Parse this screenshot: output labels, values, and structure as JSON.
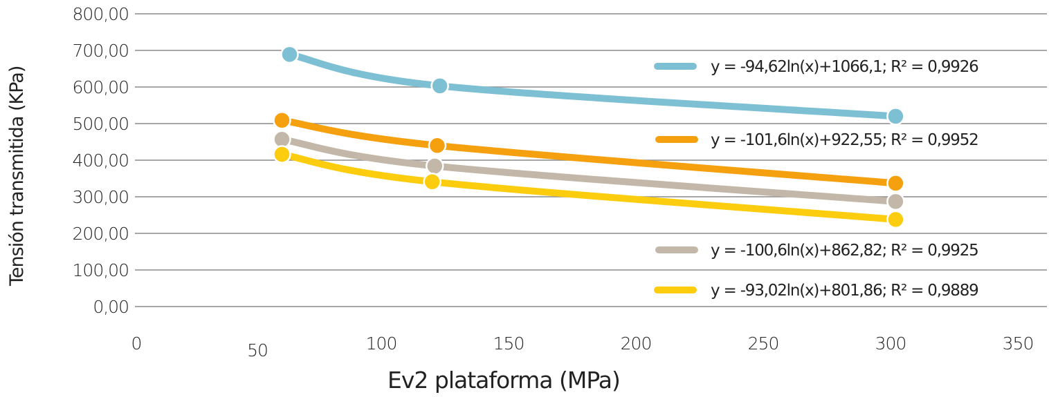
{
  "chart_data": {
    "type": "line",
    "title": "",
    "xlabel": "Ev2 plataforma (MPa)",
    "ylabel": "Tensión transmitida (KPa)",
    "xlim": [
      0,
      350
    ],
    "ylim": [
      0,
      800
    ],
    "x_ticks": [
      "0",
      "50",
      "100",
      "150",
      "200",
      "250",
      "300",
      "350"
    ],
    "x_tick_values": [
      0,
      50,
      100,
      150,
      200,
      250,
      300,
      350
    ],
    "y_ticks": [
      "0,00",
      "100,00",
      "200,00",
      "300,00",
      "400,00",
      "500,00",
      "600,00",
      "700,00",
      "800,00"
    ],
    "y_tick_values": [
      0,
      100,
      200,
      300,
      400,
      500,
      600,
      700,
      800
    ],
    "grid": "horizontal",
    "legend_position": "right",
    "series": [
      {
        "name": "y = -94,62ln(x)+1066,1; R² = 0,9926",
        "color": "#7dbfd3",
        "fit": {
          "a": -94.62,
          "b": 1066.1,
          "r2": 0.9926
        },
        "points": [
          {
            "x": 64,
            "y": 689
          },
          {
            "x": 123,
            "y": 603
          },
          {
            "x": 302,
            "y": 520
          }
        ]
      },
      {
        "name": "y = -101,6ln(x)+922,55; R² = 0,9952",
        "color": "#f5a00f",
        "fit": {
          "a": -101.6,
          "b": 922.55,
          "r2": 0.9952
        },
        "points": [
          {
            "x": 61,
            "y": 509
          },
          {
            "x": 122,
            "y": 440
          },
          {
            "x": 302,
            "y": 337
          }
        ]
      },
      {
        "name": "y = -100,6ln(x)+862,82; R² = 0,9925",
        "color": "#c2b7a8",
        "fit": {
          "a": -100.6,
          "b": 862.82,
          "r2": 0.9925
        },
        "points": [
          {
            "x": 61,
            "y": 457
          },
          {
            "x": 121,
            "y": 384
          },
          {
            "x": 302,
            "y": 287
          }
        ]
      },
      {
        "name": "y = -93,02ln(x)+801,86; R² = 0,9889",
        "color": "#fccd0f",
        "fit": {
          "a": -93.02,
          "b": 801.86,
          "r2": 0.9889
        },
        "points": [
          {
            "x": 61,
            "y": 416
          },
          {
            "x": 120,
            "y": 341
          },
          {
            "x": 302,
            "y": 238
          }
        ]
      }
    ]
  }
}
